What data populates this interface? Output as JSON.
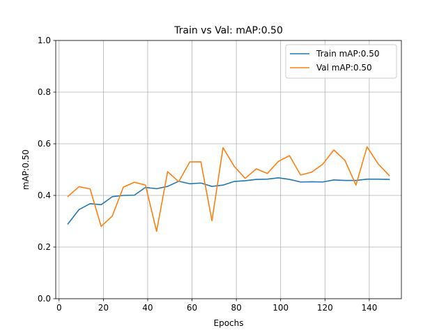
{
  "chart_data": {
    "type": "line",
    "title": "Train vs Val:  mAP:0.50",
    "xlabel": "Epochs",
    "ylabel": "mAP:0.50",
    "xlim": [
      -1.5,
      154.5
    ],
    "ylim": [
      0.0,
      1.0
    ],
    "x_ticks": [
      0,
      20,
      40,
      60,
      80,
      100,
      120,
      140
    ],
    "x_tick_labels": [
      "0",
      "20",
      "40",
      "60",
      "80",
      "100",
      "120",
      "140"
    ],
    "y_ticks": [
      0.0,
      0.2,
      0.4,
      0.6,
      0.8,
      1.0
    ],
    "y_tick_labels": [
      "0.0",
      "0.2",
      "0.4",
      "0.6",
      "0.8",
      "1.0"
    ],
    "grid": true,
    "legend_position": "top-right",
    "x": [
      4,
      9,
      14,
      19,
      24,
      29,
      34,
      39,
      44,
      49,
      54,
      59,
      64,
      69,
      74,
      79,
      84,
      89,
      94,
      99,
      104,
      109,
      114,
      119,
      124,
      129,
      134,
      139,
      144,
      149
    ],
    "series": [
      {
        "name": "Train  mAP:0.50",
        "color": "#1f77b4",
        "values": [
          0.29,
          0.345,
          0.368,
          0.364,
          0.395,
          0.4,
          0.401,
          0.431,
          0.426,
          0.435,
          0.455,
          0.445,
          0.448,
          0.435,
          0.44,
          0.454,
          0.457,
          0.462,
          0.463,
          0.468,
          0.462,
          0.452,
          0.453,
          0.452,
          0.46,
          0.458,
          0.458,
          0.463,
          0.463,
          0.462
        ]
      },
      {
        "name": "Val  mAP:0.50",
        "color": "#ff7f0e",
        "values": [
          0.396,
          0.434,
          0.425,
          0.28,
          0.32,
          0.432,
          0.451,
          0.44,
          0.261,
          0.492,
          0.453,
          0.53,
          0.53,
          0.302,
          0.585,
          0.513,
          0.466,
          0.503,
          0.485,
          0.532,
          0.554,
          0.479,
          0.49,
          0.521,
          0.576,
          0.536,
          0.44,
          0.588,
          0.522,
          0.477
        ]
      }
    ]
  }
}
